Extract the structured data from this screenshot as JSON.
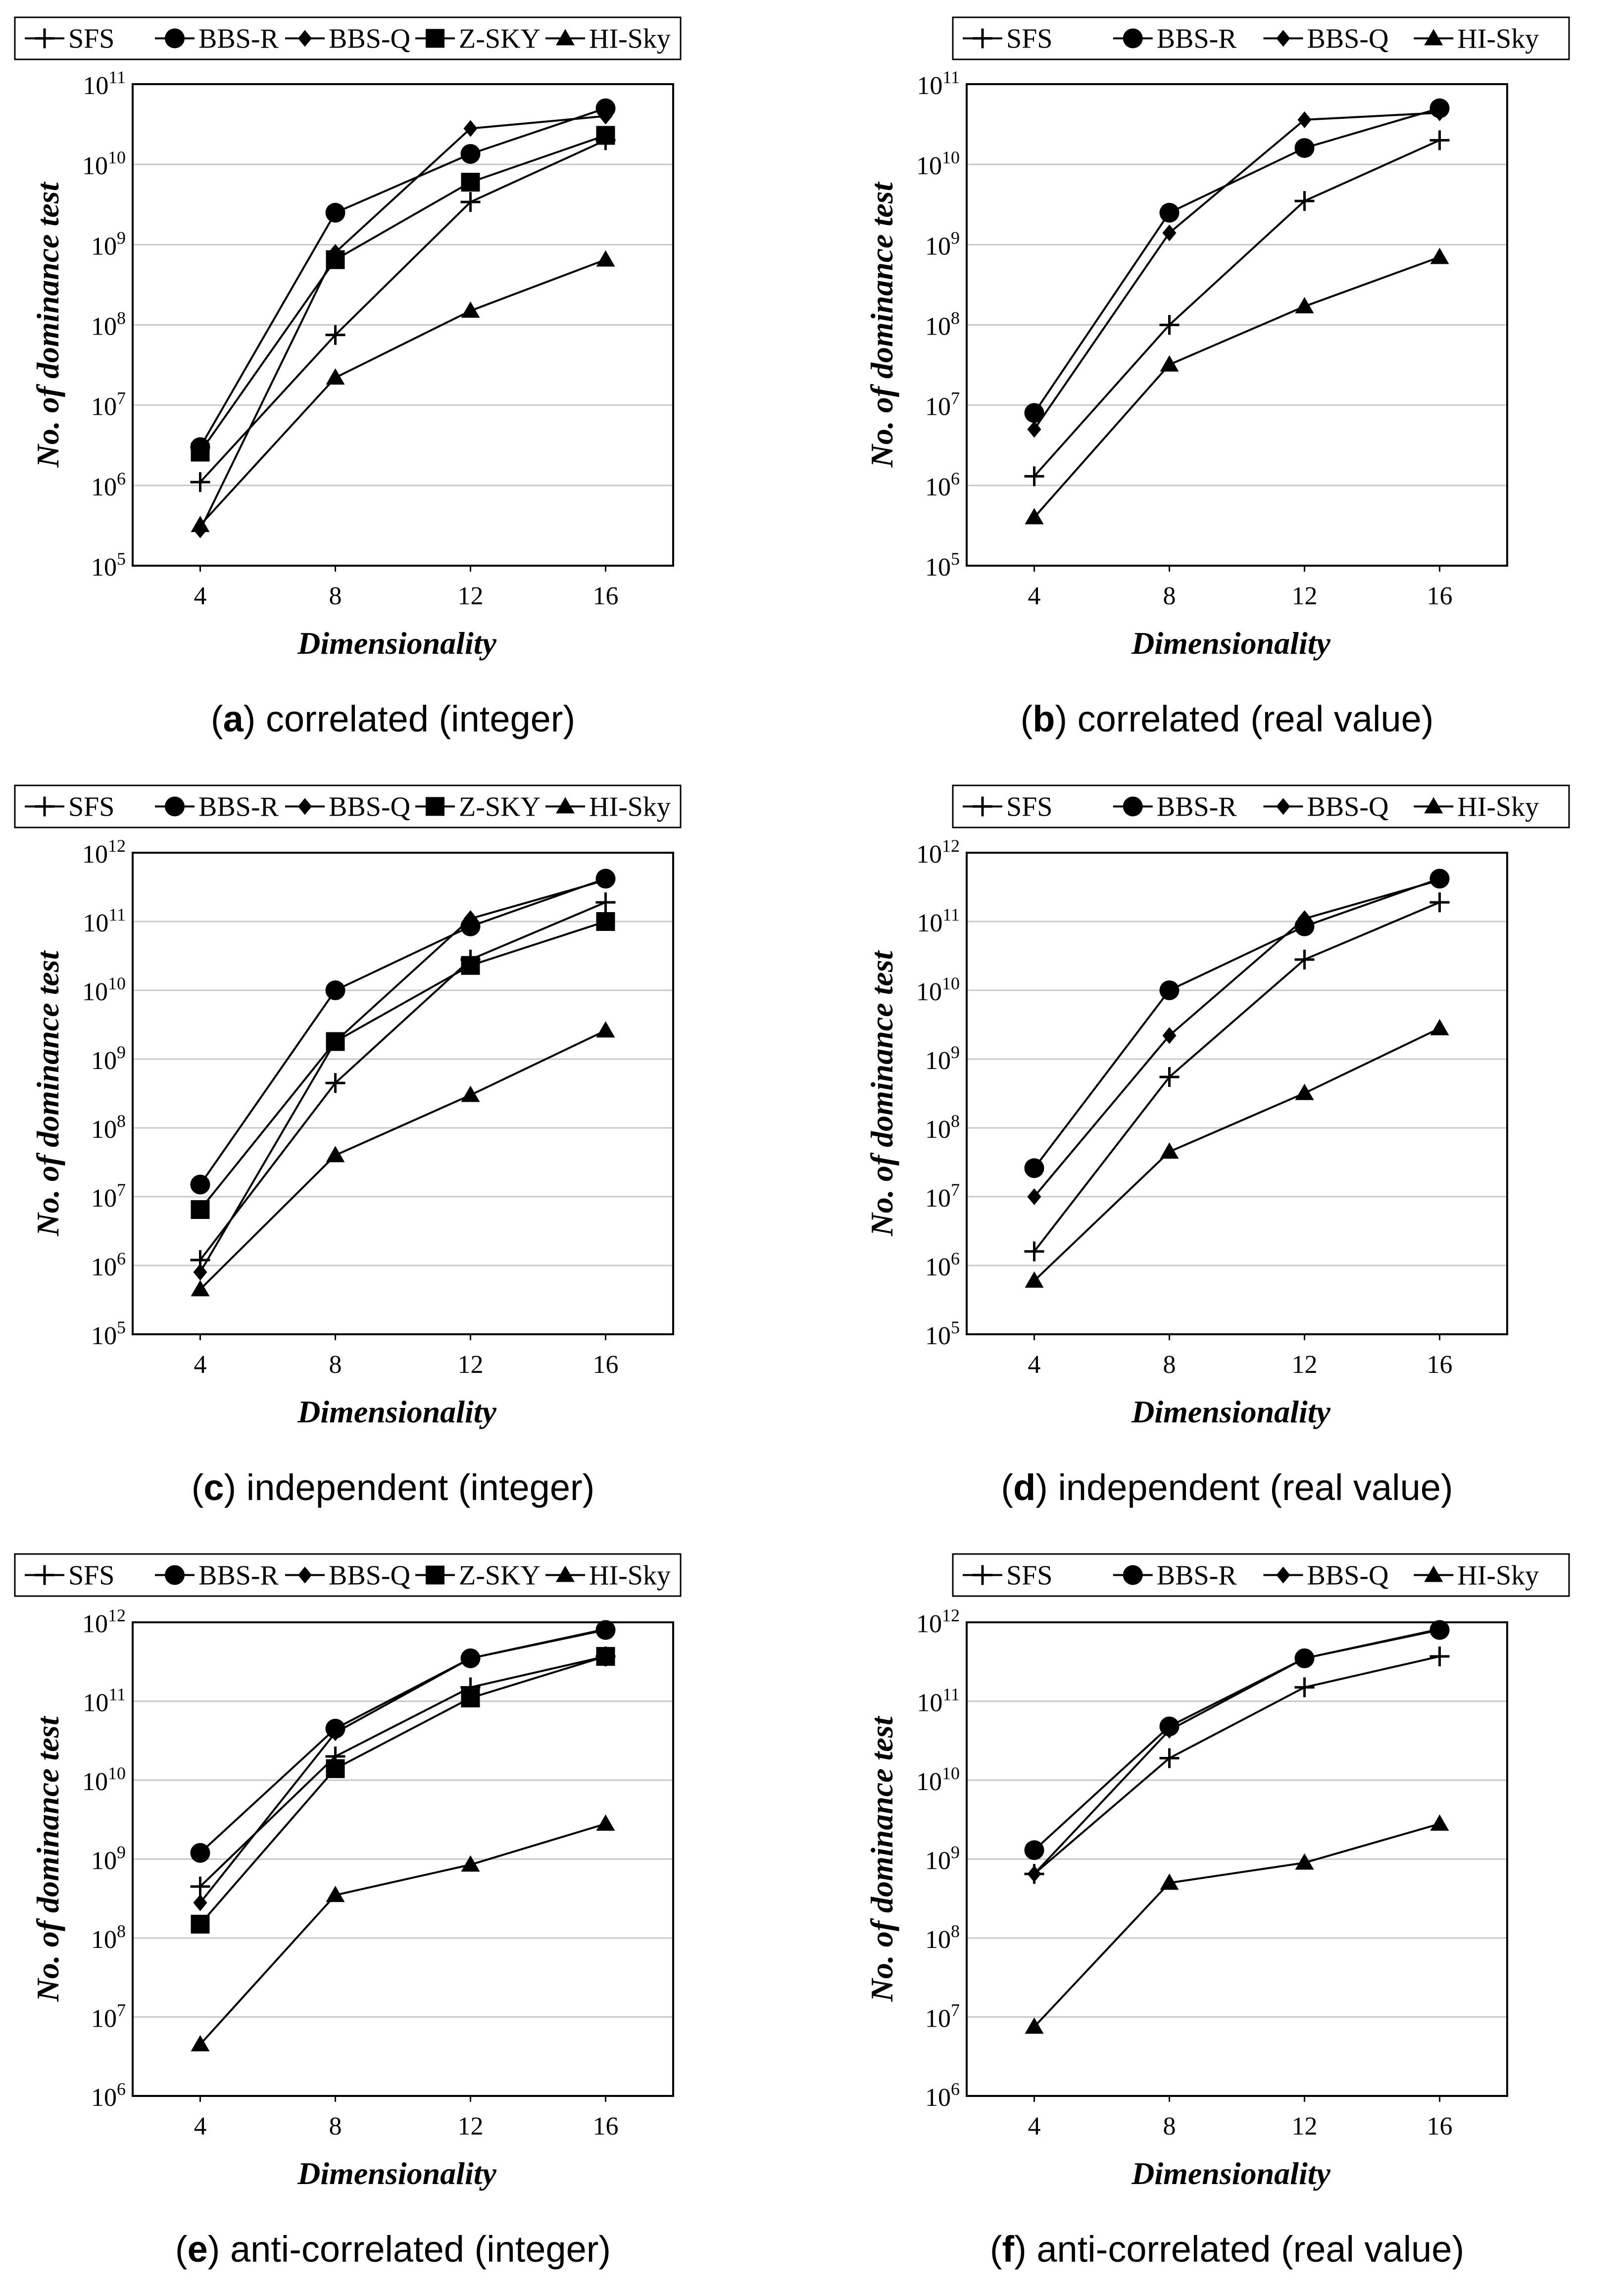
{
  "figure": {
    "chart_data": [
      {
        "type": "line",
        "id": "a",
        "caption_letter": "a",
        "caption_text": "correlated (integer)",
        "xlabel": "Dimensionality",
        "ylabel": "No. of dominance test",
        "y_scale": "log",
        "y_exp_range": [
          5,
          11
        ],
        "categories": [
          "4",
          "8",
          "12",
          "16"
        ],
        "legend": [
          "SFS",
          "BBS-R",
          "BBS-Q",
          "Z-SKY",
          "HI-Sky"
        ],
        "series": [
          {
            "name": "SFS",
            "marker": "plus",
            "values": [
              1100000.0,
              75000000.0,
              3400000000.0,
              20000000000.0
            ]
          },
          {
            "name": "BBS-R",
            "marker": "circle",
            "values": [
              3000000.0,
              2500000000.0,
              13500000000.0,
              50000000000.0
            ]
          },
          {
            "name": "BBS-Q",
            "marker": "diamond",
            "values": [
              280000.0,
              800000000.0,
              28000000000.0,
              40000000000.0
            ]
          },
          {
            "name": "Z-SKY",
            "marker": "square",
            "values": [
              2600000.0,
              650000000.0,
              6000000000.0,
              23000000000.0
            ]
          },
          {
            "name": "HI-Sky",
            "marker": "triangle",
            "values": [
              320000.0,
              22000000.0,
              150000000.0,
              650000000.0
            ]
          }
        ]
      },
      {
        "type": "line",
        "id": "b",
        "caption_letter": "b",
        "caption_text": "correlated (real value)",
        "xlabel": "Dimensionality",
        "ylabel": "No. of dominance test",
        "y_scale": "log",
        "y_exp_range": [
          5,
          11
        ],
        "categories": [
          "4",
          "8",
          "12",
          "16"
        ],
        "legend": [
          "SFS",
          "BBS-R",
          "BBS-Q",
          "HI-Sky"
        ],
        "series": [
          {
            "name": "SFS",
            "marker": "plus",
            "values": [
              1300000.0,
              100000000.0,
              3500000000.0,
              20000000000.0
            ]
          },
          {
            "name": "BBS-R",
            "marker": "circle",
            "values": [
              8000000.0,
              2500000000.0,
              16000000000.0,
              50000000000.0
            ]
          },
          {
            "name": "BBS-Q",
            "marker": "diamond",
            "values": [
              5000000.0,
              1400000000.0,
              36000000000.0,
              44000000000.0
            ]
          },
          {
            "name": "HI-Sky",
            "marker": "triangle",
            "values": [
              400000.0,
              32000000.0,
              170000000.0,
              700000000.0
            ]
          }
        ]
      },
      {
        "type": "line",
        "id": "c",
        "caption_letter": "c",
        "caption_text": "independent (integer)",
        "xlabel": "Dimensionality",
        "ylabel": "No. of dominance test",
        "y_scale": "log",
        "y_exp_range": [
          5,
          12
        ],
        "categories": [
          "4",
          "8",
          "12",
          "16"
        ],
        "legend": [
          "SFS",
          "BBS-R",
          "BBS-Q",
          "Z-SKY",
          "HI-Sky"
        ],
        "series": [
          {
            "name": "SFS",
            "marker": "plus",
            "values": [
              1200000.0,
              450000000.0,
              28000000000.0,
              190000000000.0
            ]
          },
          {
            "name": "BBS-R",
            "marker": "circle",
            "values": [
              15000000.0,
              10000000000.0,
              85000000000.0,
              420000000000.0
            ]
          },
          {
            "name": "BBS-Q",
            "marker": "diamond",
            "values": [
              800000.0,
              1800000000.0,
              110000000000.0,
              400000000000.0
            ]
          },
          {
            "name": "Z-SKY",
            "marker": "square",
            "values": [
              6500000.0,
              1800000000.0,
              23000000000.0,
              100000000000.0
            ]
          },
          {
            "name": "HI-Sky",
            "marker": "triangle",
            "values": [
              450000.0,
              40000000.0,
              300000000.0,
              2600000000.0
            ]
          }
        ]
      },
      {
        "type": "line",
        "id": "d",
        "caption_letter": "d",
        "caption_text": "independent (real value)",
        "xlabel": "Dimensionality",
        "ylabel": "No. of dominance test",
        "y_scale": "log",
        "y_exp_range": [
          5,
          12
        ],
        "categories": [
          "4",
          "8",
          "12",
          "16"
        ],
        "legend": [
          "SFS",
          "BBS-R",
          "BBS-Q",
          "HI-Sky"
        ],
        "series": [
          {
            "name": "SFS",
            "marker": "plus",
            "values": [
              1600000.0,
              550000000.0,
              28000000000.0,
              190000000000.0
            ]
          },
          {
            "name": "BBS-R",
            "marker": "circle",
            "values": [
              26000000.0,
              10000000000.0,
              85000000000.0,
              420000000000.0
            ]
          },
          {
            "name": "BBS-Q",
            "marker": "diamond",
            "values": [
              10000000.0,
              2200000000.0,
              110000000000.0,
              400000000000.0
            ]
          },
          {
            "name": "HI-Sky",
            "marker": "triangle",
            "values": [
              600000.0,
              45000000.0,
              320000000.0,
              2800000000.0
            ]
          }
        ]
      },
      {
        "type": "line",
        "id": "e",
        "caption_letter": "e",
        "caption_text": "anti-correlated (integer)",
        "xlabel": "Dimensionality",
        "ylabel": "No. of dominance test",
        "y_scale": "log",
        "y_exp_range": [
          6,
          12
        ],
        "categories": [
          "4",
          "8",
          "12",
          "16"
        ],
        "legend": [
          "SFS",
          "BBS-R",
          "BBS-Q",
          "Z-SKY",
          "HI-Sky"
        ],
        "series": [
          {
            "name": "SFS",
            "marker": "plus",
            "values": [
              450000000.0,
              20000000000.0,
              150000000000.0,
              370000000000.0
            ]
          },
          {
            "name": "BBS-R",
            "marker": "circle",
            "values": [
              1200000000.0,
              45000000000.0,
              350000000000.0,
              800000000000.0
            ]
          },
          {
            "name": "BBS-Q",
            "marker": "diamond",
            "values": [
              280000000.0,
              40000000000.0,
              350000000000.0,
              820000000000.0
            ]
          },
          {
            "name": "Z-SKY",
            "marker": "square",
            "values": [
              150000000.0,
              14000000000.0,
              110000000000.0,
              370000000000.0
            ]
          },
          {
            "name": "HI-Sky",
            "marker": "triangle",
            "values": [
              4500000.0,
              350000000.0,
              850000000.0,
              2800000000.0
            ]
          }
        ]
      },
      {
        "type": "line",
        "id": "f",
        "caption_letter": "f",
        "caption_text": "anti-correlated (real value)",
        "xlabel": "Dimensionality",
        "ylabel": "No. of dominance test",
        "y_scale": "log",
        "y_exp_range": [
          6,
          12
        ],
        "categories": [
          "4",
          "8",
          "12",
          "16"
        ],
        "legend": [
          "SFS",
          "BBS-R",
          "BBS-Q",
          "HI-Sky"
        ],
        "series": [
          {
            "name": "SFS",
            "marker": "plus",
            "values": [
              650000000.0,
              19000000000.0,
              150000000000.0,
              370000000000.0
            ]
          },
          {
            "name": "BBS-R",
            "marker": "circle",
            "values": [
              1300000000.0,
              48000000000.0,
              350000000000.0,
              800000000000.0
            ]
          },
          {
            "name": "BBS-Q",
            "marker": "diamond",
            "values": [
              650000000.0,
              43000000000.0,
              350000000000.0,
              820000000000.0
            ]
          },
          {
            "name": "HI-Sky",
            "marker": "triangle",
            "values": [
              7500000.0,
              500000000.0,
              900000000.0,
              2800000000.0
            ]
          }
        ]
      }
    ]
  }
}
